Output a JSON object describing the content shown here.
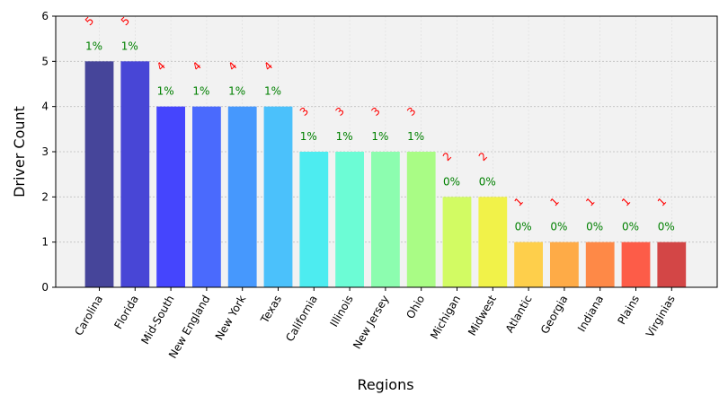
{
  "chart_data": {
    "type": "bar",
    "title": "",
    "xlabel": "Regions",
    "ylabel": "Driver Count",
    "ylim": [
      0,
      6
    ],
    "yticks": [
      0,
      1,
      2,
      3,
      4,
      5,
      6
    ],
    "grid": true,
    "categories": [
      "Carolina",
      "Florida",
      "Mid-South",
      "New England",
      "New York",
      "Texas",
      "California",
      "Illinois",
      "New Jersey",
      "Ohio",
      "Michigan",
      "Midwest",
      "Atlantic",
      "Georgia",
      "Indiana",
      "Plains",
      "Virginias"
    ],
    "values": [
      5,
      5,
      4,
      4,
      4,
      4,
      3,
      3,
      3,
      3,
      2,
      2,
      1,
      1,
      1,
      1,
      1
    ],
    "count_labels": [
      "5",
      "5",
      "4",
      "4",
      "4",
      "4",
      "3",
      "3",
      "3",
      "3",
      "2",
      "2",
      "1",
      "1",
      "1",
      "1",
      "1"
    ],
    "percent_labels": [
      "1%",
      "1%",
      "1%",
      "1%",
      "1%",
      "1%",
      "1%",
      "1%",
      "1%",
      "1%",
      "0%",
      "0%",
      "0%",
      "0%",
      "0%",
      "0%",
      "0%"
    ],
    "colors": [
      "#46459a",
      "#4846d6",
      "#4545fd",
      "#4a6afd",
      "#4698fd",
      "#4bc1fb",
      "#4decf0",
      "#6cfcd5",
      "#8cfdaf",
      "#a9fc85",
      "#d2fb63",
      "#f1f249",
      "#fecf4b",
      "#feab47",
      "#fe8947",
      "#fd5c48",
      "#d34646"
    ],
    "count_label_color": "#ff0000",
    "percent_label_color": "#008000",
    "plot_background": "#f2f2f2"
  }
}
